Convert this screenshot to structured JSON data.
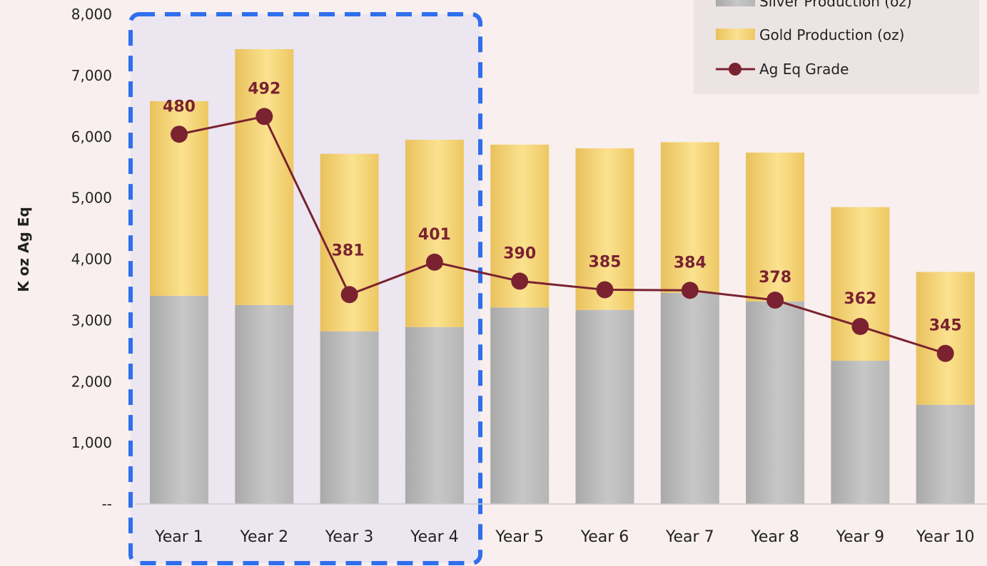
{
  "chart_data": {
    "type": "bar",
    "stacked": true,
    "categories": [
      "Year 1",
      "Year 2",
      "Year 3",
      "Year 4",
      "Year 5",
      "Year 6",
      "Year 7",
      "Year 8",
      "Year 9",
      "Year 10"
    ],
    "series": [
      {
        "name": "Silver Production (oz)",
        "type": "bar",
        "color": "#b8b8b8",
        "values": [
          3400,
          3250,
          2820,
          2890,
          3210,
          3170,
          3450,
          3310,
          2340,
          1620
        ]
      },
      {
        "name": "Gold  Production (oz)",
        "type": "bar",
        "color": "#f2cf6e",
        "values": [
          3180,
          4180,
          2900,
          3060,
          2660,
          2640,
          2460,
          2430,
          2510,
          2170
        ]
      },
      {
        "name": "Ag Eq Grade",
        "type": "line",
        "color": "#7a2230",
        "values": [
          480,
          492,
          381,
          401,
          390,
          385,
          384,
          378,
          362,
          345
        ]
      }
    ],
    "grade_line_positions": [
      6040,
      6330,
      3420,
      3950,
      3640,
      3500,
      3490,
      3330,
      2900,
      2460
    ],
    "ylabel": "K oz Ag Eq",
    "ylim": [
      0,
      8000
    ],
    "yticks": [
      0,
      1000,
      2000,
      3000,
      4000,
      5000,
      6000,
      7000,
      8000
    ],
    "ytick_labels": [
      "--",
      "1,000",
      "2,000",
      "3,000",
      "4,000",
      "5,000",
      "6,000",
      "7,000",
      "8,000"
    ],
    "legend_position": "top-right",
    "highlight_categories": [
      "Year 1",
      "Year 2",
      "Year 3",
      "Year 4"
    ],
    "grid": false
  }
}
